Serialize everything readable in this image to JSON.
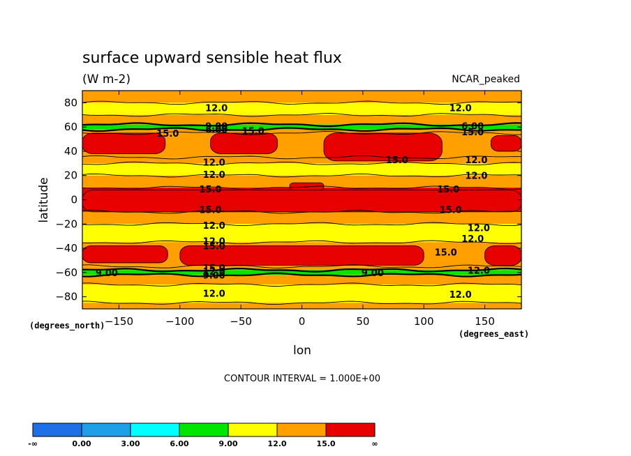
{
  "chart_data": {
    "type": "heatmap",
    "title": "surface upward sensible heat flux",
    "units": "(W m-2)",
    "dataset": "NCAR_peaked",
    "xlabel": "lon",
    "ylabel": "latitude",
    "x_units_note": "(degrees_east)",
    "y_units_note": "(degrees_north)",
    "xlim": [
      -180,
      180
    ],
    "ylim": [
      -90,
      90
    ],
    "x_ticks": [
      -150,
      -100,
      -50,
      0,
      50,
      100,
      150
    ],
    "y_ticks": [
      80,
      60,
      40,
      20,
      0,
      -20,
      -40,
      -60,
      -80
    ],
    "contour_interval_text": "CONTOUR INTERVAL = 1.000E+00",
    "levels": [
      {
        "label": "-∞",
        "color": "#1f6fe6"
      },
      {
        "label": "0.00",
        "color": "#1fa0e6"
      },
      {
        "label": "3.00",
        "color": "#00ffff"
      },
      {
        "label": "6.00",
        "color": "#00e600"
      },
      {
        "label": "9.00",
        "color": "#ffff00"
      },
      {
        "label": "12.0",
        "color": "#ff9f00"
      },
      {
        "label": "15.0",
        "color": "#e60000"
      },
      {
        "label": "∞",
        "color": null
      }
    ],
    "lat_bands": [
      {
        "lat": [
          80,
          90
        ],
        "value": 12.5
      },
      {
        "lat": [
          70,
          80
        ],
        "value": 10.5
      },
      {
        "lat": [
          62,
          70
        ],
        "value": 12.8
      },
      {
        "lat": [
          58,
          62
        ],
        "value": 7.5
      },
      {
        "lat": [
          55,
          58
        ],
        "value": 13.5
      },
      {
        "lat": [
          35,
          55
        ],
        "value": 14.3
      },
      {
        "lat": [
          30,
          35
        ],
        "value": 13.2
      },
      {
        "lat": [
          20,
          30
        ],
        "value": 10.5
      },
      {
        "lat": [
          10,
          20
        ],
        "value": 12.6
      },
      {
        "lat": [
          -10,
          10
        ],
        "value": 15.5
      },
      {
        "lat": [
          -20,
          -10
        ],
        "value": 13.0
      },
      {
        "lat": [
          -35,
          -20
        ],
        "value": 10.5
      },
      {
        "lat": [
          -55,
          -35
        ],
        "value": 14.5
      },
      {
        "lat": [
          -58,
          -55
        ],
        "value": 12.8
      },
      {
        "lat": [
          -62,
          -58
        ],
        "value": 8.0
      },
      {
        "lat": [
          -70,
          -62
        ],
        "value": 12.6
      },
      {
        "lat": [
          -85,
          -70
        ],
        "value": 10.5
      },
      {
        "lat": [
          -90,
          -85
        ],
        "value": 12.3
      }
    ],
    "red_patches": [
      {
        "lon": [
          -180,
          -112
        ],
        "lat": [
          38,
          55
        ],
        "value": 16
      },
      {
        "lon": [
          -75,
          -20
        ],
        "lat": [
          38,
          55
        ],
        "value": 16
      },
      {
        "lon": [
          18,
          115
        ],
        "lat": [
          32,
          55
        ],
        "value": 16
      },
      {
        "lon": [
          155,
          180
        ],
        "lat": [
          40,
          53
        ],
        "value": 16
      },
      {
        "lon": [
          -180,
          180
        ],
        "lat": [
          -10,
          8
        ],
        "value": 16
      },
      {
        "lon": [
          -10,
          18
        ],
        "lat": [
          8,
          14
        ],
        "value": 16
      },
      {
        "lon": [
          -180,
          -110
        ],
        "lat": [
          -52,
          -38
        ],
        "value": 16
      },
      {
        "lon": [
          -100,
          100
        ],
        "lat": [
          -54,
          -38
        ],
        "value": 16
      },
      {
        "lon": [
          150,
          180
        ],
        "lat": [
          -54,
          -38
        ],
        "value": 16
      }
    ],
    "contour_labels": [
      {
        "text": "12.0",
        "lon": -70,
        "lat": 76
      },
      {
        "text": "12.0",
        "lon": 130,
        "lat": 76
      },
      {
        "text": "9.00",
        "lon": -70,
        "lat": 61
      },
      {
        "text": "6.00",
        "lon": -70,
        "lat": 58
      },
      {
        "text": "6.00",
        "lon": 140,
        "lat": 61
      },
      {
        "text": "15.0",
        "lon": -110,
        "lat": 55
      },
      {
        "text": "15.0",
        "lon": -40,
        "lat": 57
      },
      {
        "text": "15.0",
        "lon": 140,
        "lat": 56
      },
      {
        "text": "15.0",
        "lon": 78,
        "lat": 33
      },
      {
        "text": "12.0",
        "lon": -72,
        "lat": 31
      },
      {
        "text": "12.0",
        "lon": 143,
        "lat": 33
      },
      {
        "text": "12.0",
        "lon": -72,
        "lat": 21
      },
      {
        "text": "12.0",
        "lon": 143,
        "lat": 20
      },
      {
        "text": "15.0",
        "lon": -75,
        "lat": 9
      },
      {
        "text": "15.0",
        "lon": 120,
        "lat": 9
      },
      {
        "text": "15.0",
        "lon": -75,
        "lat": -8
      },
      {
        "text": "15.0",
        "lon": 122,
        "lat": -8
      },
      {
        "text": "12.0",
        "lon": -72,
        "lat": -21
      },
      {
        "text": "12.0",
        "lon": 145,
        "lat": -23
      },
      {
        "text": "12.0",
        "lon": 140,
        "lat": -32
      },
      {
        "text": "12.0",
        "lon": -72,
        "lat": -34
      },
      {
        "text": "15.0",
        "lon": -72,
        "lat": -38
      },
      {
        "text": "15.0",
        "lon": 118,
        "lat": -43
      },
      {
        "text": "15.0",
        "lon": -72,
        "lat": -56
      },
      {
        "text": "12.0",
        "lon": -72,
        "lat": -59
      },
      {
        "text": "9.00",
        "lon": -72,
        "lat": -62
      },
      {
        "text": "9.00",
        "lon": -160,
        "lat": -60
      },
      {
        "text": "9.00",
        "lon": 58,
        "lat": -60
      },
      {
        "text": "12.0",
        "lon": 145,
        "lat": -58
      },
      {
        "text": "12.0",
        "lon": -72,
        "lat": -77
      },
      {
        "text": "12.0",
        "lon": 130,
        "lat": -78
      }
    ],
    "grid": false,
    "legend": "bottom"
  }
}
